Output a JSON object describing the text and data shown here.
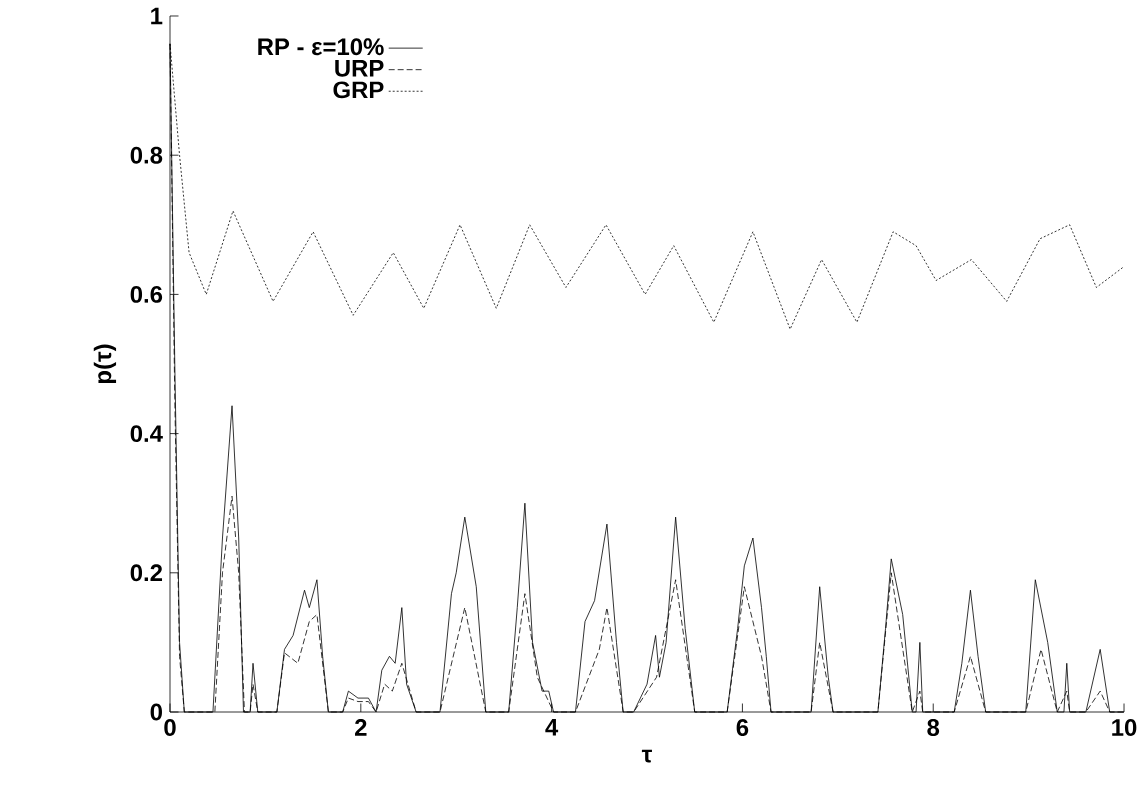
{
  "chart_data": {
    "type": "line",
    "xlabel": "τ",
    "ylabel": "p(τ)",
    "xlim": [
      0,
      10
    ],
    "xticks": [
      0,
      2,
      4,
      6,
      8,
      10
    ],
    "ylim": [
      0,
      1
    ],
    "yticks": [
      0,
      0.2,
      0.4,
      0.6,
      0.8,
      1
    ],
    "legend": "top left",
    "grid": false,
    "marker": "none",
    "series": [
      {
        "name": "RP - ε=10%",
        "color": "#000000",
        "line_style": "solid",
        "x": [
          0,
          0.05,
          0.1,
          0.15,
          0.45,
          0.55,
          0.65,
          0.72,
          0.77,
          0.84,
          0.87,
          0.92,
          1.12,
          1.2,
          1.29,
          1.41,
          1.46,
          1.54,
          1.6,
          1.66,
          1.81,
          1.87,
          1.97,
          2.08,
          2.16,
          2.22,
          2.3,
          2.36,
          2.43,
          2.48,
          2.58,
          2.83,
          2.95,
          3.0,
          3.09,
          3.21,
          3.31,
          3.55,
          3.64,
          3.72,
          3.8,
          3.9,
          3.97,
          4.02,
          4.25,
          4.35,
          4.45,
          4.58,
          4.68,
          4.75,
          4.86,
          5.0,
          5.09,
          5.13,
          5.2,
          5.3,
          5.4,
          5.5,
          5.84,
          5.95,
          6.02,
          6.11,
          6.2,
          6.25,
          6.3,
          6.72,
          6.81,
          6.9,
          6.95,
          7.42,
          7.5,
          7.56,
          7.68,
          7.78,
          7.82,
          7.86,
          7.89,
          8.22,
          8.3,
          8.39,
          8.47,
          8.55,
          8.97,
          9.07,
          9.2,
          9.3,
          9.37,
          9.4,
          9.43,
          9.6,
          9.75,
          9.85,
          10
        ],
        "values": [
          0.96,
          0.5,
          0.1,
          0,
          0,
          0.25,
          0.44,
          0.25,
          0,
          0,
          0.07,
          0,
          0,
          0.09,
          0.11,
          0.175,
          0.15,
          0.19,
          0.08,
          0,
          0,
          0.03,
          0.02,
          0.02,
          0,
          0.06,
          0.08,
          0.07,
          0.15,
          0.04,
          0,
          0,
          0.17,
          0.2,
          0.28,
          0.18,
          0,
          0,
          0.15,
          0.3,
          0.1,
          0.03,
          0.03,
          0,
          0,
          0.13,
          0.16,
          0.27,
          0.1,
          0,
          0,
          0.04,
          0.11,
          0.05,
          0.1,
          0.28,
          0.12,
          0,
          0,
          0.12,
          0.21,
          0.25,
          0.15,
          0.08,
          0,
          0,
          0.18,
          0.05,
          0,
          0,
          0.12,
          0.22,
          0.14,
          0,
          0,
          0.1,
          0,
          0,
          0.07,
          0.175,
          0.08,
          0,
          0,
          0.19,
          0.1,
          0,
          0,
          0.07,
          0,
          0,
          0.09,
          0,
          0
        ]
      },
      {
        "name": "URP",
        "color": "#000000",
        "line_style": "dashed",
        "x": [
          0,
          0.05,
          0.1,
          0.15,
          0.47,
          0.55,
          0.65,
          0.72,
          0.78,
          0.84,
          0.87,
          0.92,
          1.12,
          1.2,
          1.34,
          1.46,
          1.54,
          1.66,
          1.81,
          1.87,
          1.97,
          2.08,
          2.16,
          2.25,
          2.33,
          2.43,
          2.58,
          2.83,
          3.09,
          3.31,
          3.55,
          3.72,
          3.85,
          4.02,
          4.25,
          4.5,
          4.58,
          4.75,
          4.86,
          5.1,
          5.3,
          5.5,
          5.84,
          6.02,
          6.2,
          6.3,
          6.72,
          6.81,
          6.95,
          7.42,
          7.56,
          7.78,
          7.86,
          7.89,
          8.22,
          8.39,
          8.55,
          8.97,
          9.13,
          9.3,
          9.4,
          9.43,
          9.6,
          9.75,
          9.85,
          10
        ],
        "values": [
          0.96,
          0.45,
          0.08,
          0,
          0,
          0.2,
          0.31,
          0.2,
          0,
          0,
          0.04,
          0,
          0,
          0.085,
          0.07,
          0.13,
          0.14,
          0,
          0,
          0.02,
          0.015,
          0.015,
          0,
          0.04,
          0.03,
          0.07,
          0,
          0,
          0.15,
          0,
          0,
          0.17,
          0.05,
          0,
          0,
          0.09,
          0.15,
          0,
          0,
          0.05,
          0.19,
          0,
          0,
          0.18,
          0.08,
          0,
          0,
          0.1,
          0,
          0,
          0.2,
          0,
          0.03,
          0,
          0,
          0.08,
          0,
          0,
          0.09,
          0,
          0.03,
          0,
          0,
          0.03,
          0,
          0
        ]
      },
      {
        "name": "GRP",
        "color": "#000000",
        "line_style": "dotted",
        "x": [
          0,
          0.1,
          0.2,
          0.38,
          0.66,
          1.08,
          1.5,
          1.92,
          2.34,
          2.66,
          3.04,
          3.42,
          3.77,
          4.15,
          4.57,
          4.98,
          5.28,
          5.7,
          6.11,
          6.5,
          6.83,
          7.2,
          7.58,
          7.82,
          8.03,
          8.4,
          8.77,
          9.12,
          9.43,
          9.71,
          10
        ],
        "values": [
          0.96,
          0.8,
          0.66,
          0.6,
          0.72,
          0.59,
          0.69,
          0.57,
          0.66,
          0.58,
          0.7,
          0.58,
          0.7,
          0.61,
          0.7,
          0.6,
          0.67,
          0.56,
          0.69,
          0.55,
          0.65,
          0.56,
          0.69,
          0.67,
          0.62,
          0.65,
          0.59,
          0.68,
          0.7,
          0.61,
          0.64
        ]
      }
    ]
  }
}
